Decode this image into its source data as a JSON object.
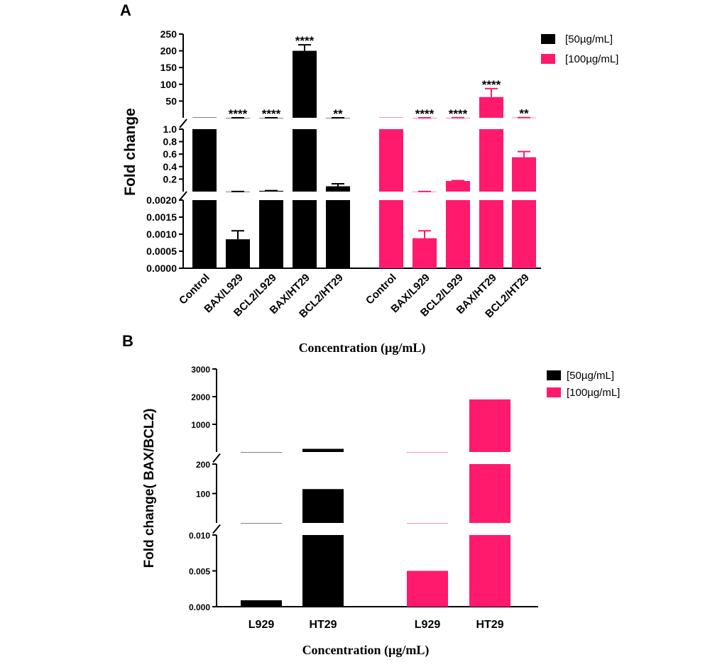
{
  "colors": {
    "series_50": "#000000",
    "series_100": "#ff1a6e"
  },
  "chart_data": [
    {
      "panel_label": "A",
      "type": "bar",
      "ylabel": "Fold change",
      "xlabel": "Concentration (µg/mL)",
      "axis_segments": [
        {
          "range": [
            0,
            0.002
          ],
          "ticks": [
            "0.0000",
            "0.0005",
            "0.0010",
            "0.0015",
            "0.0020"
          ]
        },
        {
          "range": [
            0,
            1.0
          ],
          "ticks": [
            "0.2",
            "0.4",
            "0.6",
            "0.8",
            "1.0"
          ]
        },
        {
          "range": [
            0,
            250
          ],
          "ticks": [
            "50",
            "100",
            "150",
            "200",
            "250"
          ]
        }
      ],
      "categories": [
        "Control",
        "BAX/L929",
        "BCL2/L929",
        "BAX/HT29",
        "BCL2/HT29"
      ],
      "legend": [
        "[50µg/mL]",
        "[100µg/mL]"
      ],
      "series": [
        {
          "name": "[50µg/mL]",
          "values": [
            1.0,
            0.00085,
            0.012,
            200,
            0.085
          ],
          "errors": [
            0,
            0.00025,
            0.004,
            18,
            0.04
          ],
          "significance": [
            "",
            "****",
            "****",
            "****",
            "**"
          ]
        },
        {
          "name": "[100µg/mL]",
          "values": [
            1.0,
            0.00088,
            0.17,
            62,
            0.55
          ],
          "errors": [
            0,
            0.00022,
            0.006,
            25,
            0.09
          ],
          "significance": [
            "",
            "****",
            "****",
            "****",
            "**"
          ]
        }
      ]
    },
    {
      "panel_label": "B",
      "type": "bar",
      "ylabel": "Fold change( BAX/BCL2)",
      "xlabel": "Concentration (µg/mL)",
      "axis_segments": [
        {
          "range": [
            0,
            0.01
          ],
          "ticks": [
            "0.000",
            "0.005",
            "0.010"
          ]
        },
        {
          "range": [
            0,
            200
          ],
          "ticks": [
            "100",
            "200"
          ]
        },
        {
          "range": [
            0,
            3000
          ],
          "ticks": [
            "1000",
            "2000",
            "3000"
          ]
        }
      ],
      "categories": [
        "L929",
        "HT29"
      ],
      "legend": [
        "[50µg/mL]",
        "[100µg/mL]"
      ],
      "series": [
        {
          "name": "[50µg/mL]",
          "values": [
            0.0009,
            115
          ]
        },
        {
          "name": "[100µg/mL]",
          "values": [
            0.005,
            1900
          ]
        }
      ]
    }
  ]
}
